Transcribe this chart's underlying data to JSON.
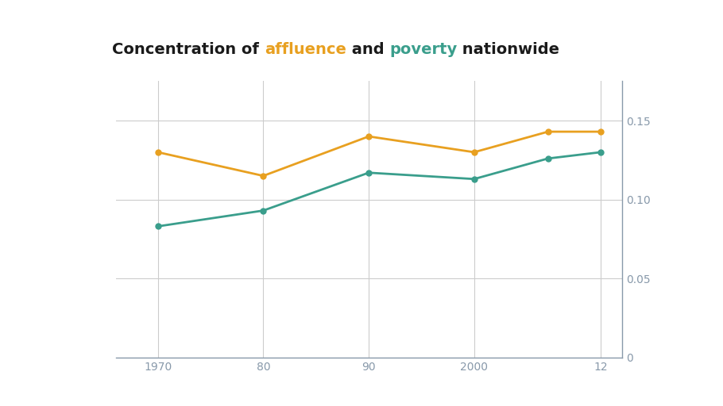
{
  "title_parts": [
    {
      "text": "Concentration of ",
      "color": "#1a1a1a",
      "weight": "bold"
    },
    {
      "text": "affluence",
      "color": "#E8A020",
      "weight": "bold"
    },
    {
      "text": " and ",
      "color": "#1a1a1a",
      "weight": "bold"
    },
    {
      "text": "poverty",
      "color": "#3A9E8C",
      "weight": "bold"
    },
    {
      "text": " nationwide",
      "color": "#1a1a1a",
      "weight": "bold"
    }
  ],
  "x_values": [
    1970,
    1980,
    1990,
    2000,
    2007,
    2012
  ],
  "affluence_values": [
    0.13,
    0.115,
    0.14,
    0.13,
    0.143,
    0.143
  ],
  "poverty_values": [
    0.083,
    0.093,
    0.117,
    0.113,
    0.126,
    0.13
  ],
  "affluence_color": "#E8A020",
  "poverty_color": "#3A9E8C",
  "background_color": "#FFFFFF",
  "grid_color": "#CCCCCC",
  "axis_color": "#8899AA",
  "tick_label_color": "#8899AA",
  "ylim": [
    0,
    0.175
  ],
  "yticks": [
    0,
    0.05,
    0.1,
    0.15
  ],
  "ytick_labels": [
    "0",
    "0.05",
    "0.10",
    "0.15"
  ],
  "xtick_labels": [
    "1970",
    "80",
    "90",
    "2000",
    "12"
  ],
  "xtick_positions": [
    1970,
    1980,
    1990,
    2000,
    2012
  ],
  "line_width": 2.0,
  "marker_size": 5,
  "title_fontsize": 14,
  "annot_fontsize": 11,
  "tick_fontsize": 10
}
